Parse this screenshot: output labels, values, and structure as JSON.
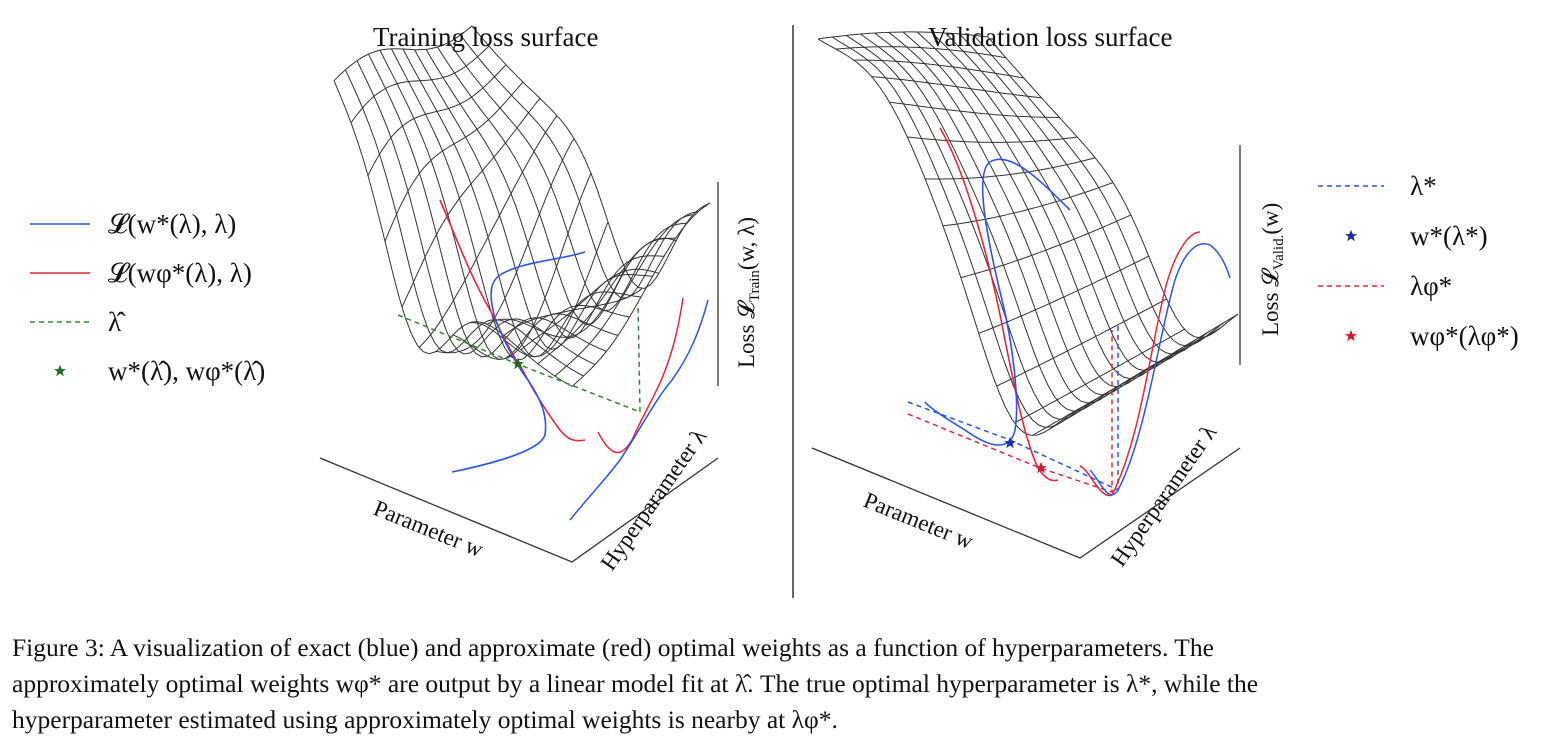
{
  "panels": {
    "left": {
      "title": "Training loss surface",
      "xaxis": "Parameter w",
      "yaxis": "Hyperparameter λ",
      "zaxis_prefix": "Loss ",
      "zaxis_sym": "𝓛",
      "zaxis_sub": "Train",
      "zaxis_tail": "(w, λ)"
    },
    "right": {
      "title": "Validation loss surface",
      "xaxis": "Parameter w",
      "yaxis": "Hyperparameter λ",
      "zaxis_prefix": "Loss ",
      "zaxis_sym": "𝓛",
      "zaxis_sub": "Valid.",
      "zaxis_tail": "(w)"
    }
  },
  "legend_left": [
    {
      "label": "𝓛(w*(λ), λ)",
      "marker": "line",
      "color": "#2b55e6"
    },
    {
      "label": "𝓛(wφ*(λ), λ)",
      "marker": "line",
      "color": "#e6263a"
    },
    {
      "label": "λ̂",
      "marker": "dashed",
      "color": "#2e8b2e"
    },
    {
      "label": "w*(λ̂), wφ*(λ̂)",
      "marker": "star",
      "color": "#1f6b1f"
    }
  ],
  "legend_right": [
    {
      "label": "λ*",
      "marker": "dashed",
      "color": "#2b55e6"
    },
    {
      "label": "w*(λ*)",
      "marker": "star",
      "color": "#1a2fb0"
    },
    {
      "label": "λφ*",
      "marker": "dashed",
      "color": "#e6263a"
    },
    {
      "label": "wφ*(λφ*)",
      "marker": "star",
      "color": "#d01c2c"
    }
  ],
  "caption": {
    "line1": "Figure 3: A visualization of exact (blue) and approximate (red) optimal weights as a function of hyperparameters. The",
    "line2": "approximately optimal weights wφ* are output by a linear model fit at λ̂. The true optimal hyperparameter is λ*, while the",
    "line3": "hyperparameter estimated using approximately optimal weights is nearby at λφ*."
  }
}
